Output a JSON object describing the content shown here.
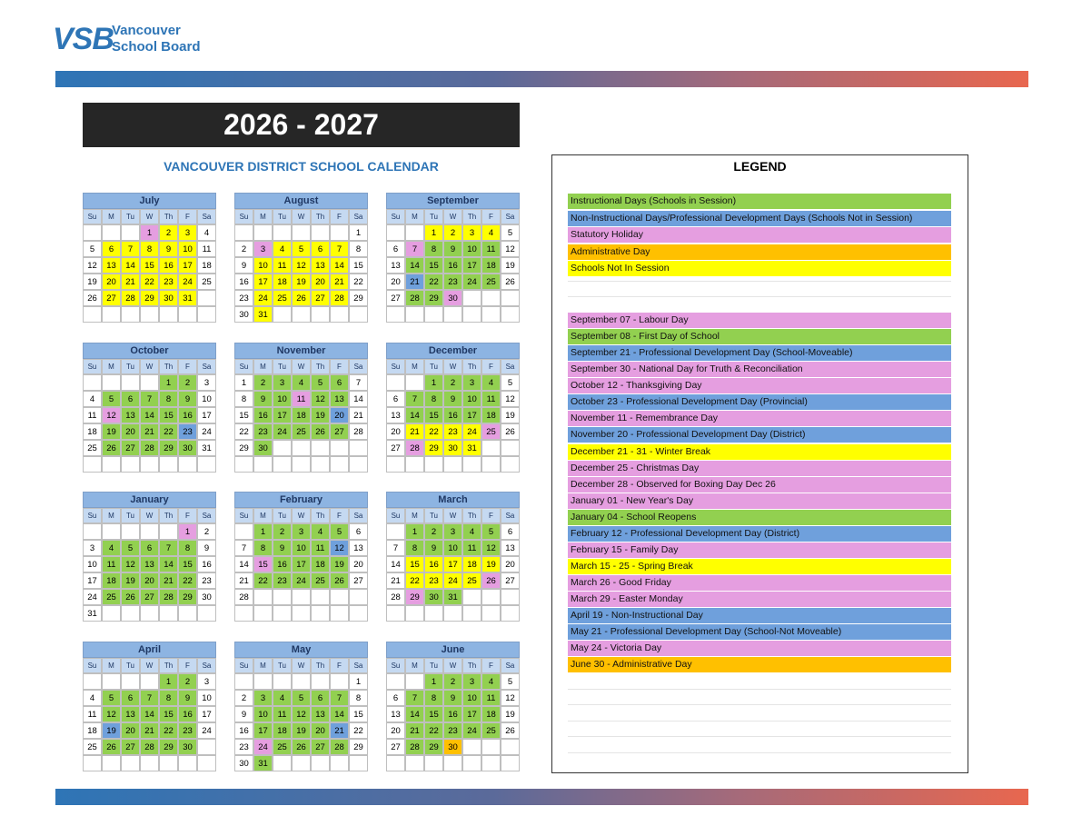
{
  "header": {
    "logo_mark": "VSB",
    "logo_line1": "Vancouver",
    "logo_line2": "School Board"
  },
  "title": "2026 - 2027",
  "subtitle": "VANCOUVER DISTRICT SCHOOL CALENDAR",
  "weekdays": [
    "Su",
    "M",
    "Tu",
    "W",
    "Th",
    "F",
    "Sa"
  ],
  "colors": {
    "I": "#92d050",
    "N": "#6fa0dc",
    "H": "#e59ee0",
    "A": "#ffc000",
    "S": "#ffff00"
  },
  "months": [
    {
      "name": "July",
      "weeks": [
        [
          null,
          null,
          null,
          1,
          2,
          3,
          4
        ],
        [
          5,
          6,
          7,
          8,
          9,
          10,
          11
        ],
        [
          12,
          13,
          14,
          15,
          16,
          17,
          18
        ],
        [
          19,
          20,
          21,
          22,
          23,
          24,
          25
        ],
        [
          26,
          27,
          28,
          29,
          30,
          31,
          null
        ],
        [
          null,
          null,
          null,
          null,
          null,
          null,
          null
        ]
      ],
      "kinds": [
        "...HSS.",
        ".SSSSS.",
        ".SSSSS.",
        ".SSSSS.",
        ".SSSSS.",
        "......."
      ]
    },
    {
      "name": "August",
      "weeks": [
        [
          null,
          null,
          null,
          null,
          null,
          null,
          1
        ],
        [
          2,
          3,
          4,
          5,
          6,
          7,
          8
        ],
        [
          9,
          10,
          11,
          12,
          13,
          14,
          15
        ],
        [
          16,
          17,
          18,
          19,
          20,
          21,
          22
        ],
        [
          23,
          24,
          25,
          26,
          27,
          28,
          29
        ],
        [
          30,
          31,
          null,
          null,
          null,
          null,
          null
        ]
      ],
      "kinds": [
        ".......",
        ".HSSSS.",
        ".SSSSS.",
        ".SSSSS.",
        ".SSSSS.",
        ".S....."
      ]
    },
    {
      "name": "September",
      "weeks": [
        [
          null,
          null,
          1,
          2,
          3,
          4,
          5
        ],
        [
          6,
          7,
          8,
          9,
          10,
          11,
          12
        ],
        [
          13,
          14,
          15,
          16,
          17,
          18,
          19
        ],
        [
          20,
          21,
          22,
          23,
          24,
          25,
          26
        ],
        [
          27,
          28,
          29,
          30,
          null,
          null,
          null
        ],
        [
          null,
          null,
          null,
          null,
          null,
          null,
          null
        ]
      ],
      "kinds": [
        "..SSSS.",
        ".HIIII.",
        ".IIIII.",
        ".NIIII.",
        ".IIH...",
        "......."
      ]
    },
    {
      "name": "October",
      "weeks": [
        [
          null,
          null,
          null,
          null,
          1,
          2,
          3
        ],
        [
          4,
          5,
          6,
          7,
          8,
          9,
          10
        ],
        [
          11,
          12,
          13,
          14,
          15,
          16,
          17
        ],
        [
          18,
          19,
          20,
          21,
          22,
          23,
          24
        ],
        [
          25,
          26,
          27,
          28,
          29,
          30,
          31
        ],
        [
          null,
          null,
          null,
          null,
          null,
          null,
          null
        ]
      ],
      "kinds": [
        "....II.",
        ".IIIII.",
        ".HIIII.",
        ".IIIIN.",
        ".IIIII.",
        "......."
      ]
    },
    {
      "name": "November",
      "weeks": [
        [
          1,
          2,
          3,
          4,
          5,
          6,
          7
        ],
        [
          8,
          9,
          10,
          11,
          12,
          13,
          14
        ],
        [
          15,
          16,
          17,
          18,
          19,
          20,
          21
        ],
        [
          22,
          23,
          24,
          25,
          26,
          27,
          28
        ],
        [
          29,
          30,
          null,
          null,
          null,
          null,
          null
        ],
        [
          null,
          null,
          null,
          null,
          null,
          null,
          null
        ]
      ],
      "kinds": [
        ".IIIII.",
        ".IIHII.",
        ".IIIIN.",
        ".IIIII.",
        ".I.....",
        "......."
      ]
    },
    {
      "name": "December",
      "weeks": [
        [
          null,
          null,
          1,
          2,
          3,
          4,
          5
        ],
        [
          6,
          7,
          8,
          9,
          10,
          11,
          12
        ],
        [
          13,
          14,
          15,
          16,
          17,
          18,
          19
        ],
        [
          20,
          21,
          22,
          23,
          24,
          25,
          26
        ],
        [
          27,
          28,
          29,
          30,
          31,
          null,
          null
        ],
        [
          null,
          null,
          null,
          null,
          null,
          null,
          null
        ]
      ],
      "kinds": [
        "..IIII.",
        ".IIIII.",
        ".IIIII.",
        ".SSSSH.",
        ".HSSS..",
        "......."
      ]
    },
    {
      "name": "January",
      "weeks": [
        [
          null,
          null,
          null,
          null,
          null,
          1,
          2
        ],
        [
          3,
          4,
          5,
          6,
          7,
          8,
          9
        ],
        [
          10,
          11,
          12,
          13,
          14,
          15,
          16
        ],
        [
          17,
          18,
          19,
          20,
          21,
          22,
          23
        ],
        [
          24,
          25,
          26,
          27,
          28,
          29,
          30
        ],
        [
          31,
          null,
          null,
          null,
          null,
          null,
          null
        ]
      ],
      "kinds": [
        ".....H.",
        ".IIIII.",
        ".IIIII.",
        ".IIIII.",
        ".IIIII.",
        "......."
      ]
    },
    {
      "name": "February",
      "weeks": [
        [
          null,
          1,
          2,
          3,
          4,
          5,
          6
        ],
        [
          7,
          8,
          9,
          10,
          11,
          12,
          13
        ],
        [
          14,
          15,
          16,
          17,
          18,
          19,
          20
        ],
        [
          21,
          22,
          23,
          24,
          25,
          26,
          27
        ],
        [
          28,
          null,
          null,
          null,
          null,
          null,
          null
        ],
        [
          null,
          null,
          null,
          null,
          null,
          null,
          null
        ]
      ],
      "kinds": [
        ".IIIII.",
        ".IIIIN.",
        ".HIIII.",
        ".IIIII.",
        ".......",
        "......."
      ]
    },
    {
      "name": "March",
      "weeks": [
        [
          null,
          1,
          2,
          3,
          4,
          5,
          6
        ],
        [
          7,
          8,
          9,
          10,
          11,
          12,
          13
        ],
        [
          14,
          15,
          16,
          17,
          18,
          19,
          20
        ],
        [
          21,
          22,
          23,
          24,
          25,
          26,
          27
        ],
        [
          28,
          29,
          30,
          31,
          null,
          null,
          null
        ],
        [
          null,
          null,
          null,
          null,
          null,
          null,
          null
        ]
      ],
      "kinds": [
        ".IIIII.",
        ".IIIII.",
        ".SSSSS.",
        ".SSSSH.",
        ".HII...",
        "......."
      ]
    },
    {
      "name": "April",
      "weeks": [
        [
          null,
          null,
          null,
          null,
          1,
          2,
          3
        ],
        [
          4,
          5,
          6,
          7,
          8,
          9,
          10
        ],
        [
          11,
          12,
          13,
          14,
          15,
          16,
          17
        ],
        [
          18,
          19,
          20,
          21,
          22,
          23,
          24
        ],
        [
          25,
          26,
          27,
          28,
          29,
          30,
          null
        ],
        [
          null,
          null,
          null,
          null,
          null,
          null,
          null
        ]
      ],
      "kinds": [
        "....II.",
        ".IIIII.",
        ".IIIII.",
        ".NIIII.",
        ".IIIII.",
        "......."
      ]
    },
    {
      "name": "May",
      "weeks": [
        [
          null,
          null,
          null,
          null,
          null,
          null,
          1
        ],
        [
          2,
          3,
          4,
          5,
          6,
          7,
          8
        ],
        [
          9,
          10,
          11,
          12,
          13,
          14,
          15
        ],
        [
          16,
          17,
          18,
          19,
          20,
          21,
          22
        ],
        [
          23,
          24,
          25,
          26,
          27,
          28,
          29
        ],
        [
          30,
          31,
          null,
          null,
          null,
          null,
          null
        ]
      ],
      "kinds": [
        ".......",
        ".IIIII.",
        ".IIIII.",
        ".IIIIN.",
        ".HIIII.",
        ".I....."
      ]
    },
    {
      "name": "June",
      "weeks": [
        [
          null,
          null,
          1,
          2,
          3,
          4,
          5
        ],
        [
          6,
          7,
          8,
          9,
          10,
          11,
          12
        ],
        [
          13,
          14,
          15,
          16,
          17,
          18,
          19
        ],
        [
          20,
          21,
          22,
          23,
          24,
          25,
          26
        ],
        [
          27,
          28,
          29,
          30,
          null,
          null,
          null
        ],
        [
          null,
          null,
          null,
          null,
          null,
          null,
          null
        ]
      ],
      "kinds": [
        "..IIII.",
        ".IIIII.",
        ".IIIII.",
        ".IIIII.",
        ".IIA...",
        "......."
      ]
    }
  ],
  "legend": {
    "title": "LEGEND",
    "keys": [
      {
        "label": "Instructional Days (Schools in Session)",
        "kind": "I"
      },
      {
        "label": "Non-Instructional Days/Professional Development Days (Schools Not in Session)",
        "kind": "N"
      },
      {
        "label": "Statutory Holiday",
        "kind": "H"
      },
      {
        "label": "Administrative Day",
        "kind": "A"
      },
      {
        "label": "Schools Not In Session",
        "kind": "S"
      }
    ],
    "events": [
      {
        "label": "September 07 - Labour Day",
        "kind": "H"
      },
      {
        "label": "September 08 - First Day of School",
        "kind": "I"
      },
      {
        "label": "September 21 - Professional Development Day (School-Moveable)",
        "kind": "N"
      },
      {
        "label": "September 30 - National Day for Truth & Reconciliation",
        "kind": "H"
      },
      {
        "label": "October 12 - Thanksgiving Day",
        "kind": "H"
      },
      {
        "label": "October 23 - Professional Development Day (Provincial)",
        "kind": "N"
      },
      {
        "label": "November 11 - Remembrance Day",
        "kind": "H"
      },
      {
        "label": "November 20 - Professional Development Day (District)",
        "kind": "N"
      },
      {
        "label": "December 21 - 31 - Winter Break",
        "kind": "S"
      },
      {
        "label": "December 25 - Christmas Day",
        "kind": "H"
      },
      {
        "label": "December 28 - Observed for Boxing Day Dec 26",
        "kind": "H"
      },
      {
        "label": "January 01 - New Year's Day",
        "kind": "H"
      },
      {
        "label": "January 04 - School Reopens",
        "kind": "I"
      },
      {
        "label": "February 12 - Professional Development Day (District)",
        "kind": "N"
      },
      {
        "label": "February 15 - Family Day",
        "kind": "H"
      },
      {
        "label": "March 15 - 25 - Spring Break",
        "kind": "S"
      },
      {
        "label": "March 26 - Good Friday",
        "kind": "H"
      },
      {
        "label": "March 29 - Easter Monday",
        "kind": "H"
      },
      {
        "label": "April 19 - Non-Instructional Day",
        "kind": "N"
      },
      {
        "label": "May 21 - Professional Development Day (School-Not Moveable)",
        "kind": "N"
      },
      {
        "label": "May 24 - Victoria Day",
        "kind": "H"
      },
      {
        "label": "June 30 - Administrative Day",
        "kind": "A"
      }
    ]
  }
}
